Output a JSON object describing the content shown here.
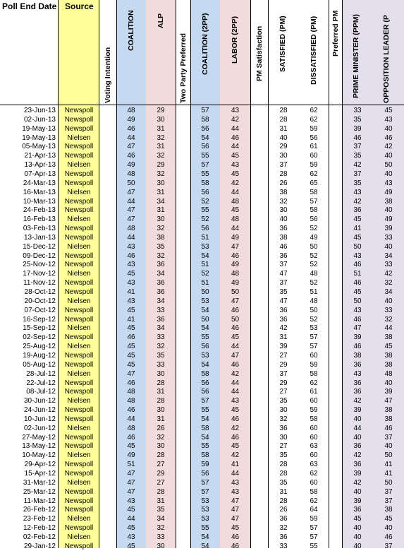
{
  "colors": {
    "source": "#ffff99",
    "coalition": "#c5d9f1",
    "alp": "#f2dcdb",
    "pm": "#e4dfec"
  },
  "headers": {
    "poll_end_date": "Poll End Date",
    "source": "Source",
    "voting_intention": "Voting Intention",
    "coalition": "COALITION",
    "alp": "ALP",
    "two_party_preferred": "Two Party Preferred",
    "coalition_2pp": "COALITION (2PP)",
    "labor_2pp": "LABOR (2PP)",
    "pm_satisfaction": "PM Satisfaction",
    "satisfied_pm": "SATISFIED (PM)",
    "dissatisfied_pm": "DISSATISFIED (PM)",
    "preferred_pm": "Preferred PM",
    "prime_minister_ppm": "PRIME MINISTER (PPM)",
    "opposition_leader_ppm": "OPPOSITION LEADER (P"
  },
  "rows": [
    [
      "23-Jun-13",
      "Newspoll",
      "48",
      "29",
      "57",
      "43",
      "28",
      "62",
      "33",
      "45"
    ],
    [
      "02-Jun-13",
      "Newspoll",
      "49",
      "30",
      "58",
      "42",
      "28",
      "62",
      "35",
      "43"
    ],
    [
      "19-May-13",
      "Newspoll",
      "46",
      "31",
      "56",
      "44",
      "31",
      "59",
      "39",
      "40"
    ],
    [
      "19-May-13",
      "Nielsen",
      "44",
      "32",
      "54",
      "46",
      "40",
      "56",
      "46",
      "46"
    ],
    [
      "05-May-13",
      "Newspoll",
      "47",
      "31",
      "56",
      "44",
      "29",
      "61",
      "37",
      "42"
    ],
    [
      "21-Apr-13",
      "Newspoll",
      "46",
      "32",
      "55",
      "45",
      "30",
      "60",
      "35",
      "40"
    ],
    [
      "13-Apr-13",
      "Nielsen",
      "49",
      "29",
      "57",
      "43",
      "37",
      "59",
      "42",
      "50"
    ],
    [
      "07-Apr-13",
      "Newspoll",
      "48",
      "32",
      "55",
      "45",
      "28",
      "62",
      "37",
      "40"
    ],
    [
      "24-Mar-13",
      "Newspoll",
      "50",
      "30",
      "58",
      "42",
      "26",
      "65",
      "35",
      "43"
    ],
    [
      "16-Mar-13",
      "Nielsen",
      "47",
      "31",
      "56",
      "44",
      "38",
      "58",
      "43",
      "49"
    ],
    [
      "10-Mar-13",
      "Newspoll",
      "44",
      "34",
      "52",
      "48",
      "32",
      "57",
      "42",
      "38"
    ],
    [
      "24-Feb-13",
      "Newspoll",
      "47",
      "31",
      "55",
      "45",
      "30",
      "58",
      "36",
      "40"
    ],
    [
      "16-Feb-13",
      "Nielsen",
      "47",
      "30",
      "52",
      "48",
      "40",
      "56",
      "45",
      "49"
    ],
    [
      "03-Feb-13",
      "Newspoll",
      "48",
      "32",
      "56",
      "44",
      "36",
      "52",
      "41",
      "39"
    ],
    [
      "13-Jan-13",
      "Newspoll",
      "44",
      "38",
      "51",
      "49",
      "38",
      "49",
      "45",
      "33"
    ],
    [
      "15-Dec-12",
      "Nielsen",
      "43",
      "35",
      "53",
      "47",
      "46",
      "50",
      "50",
      "40"
    ],
    [
      "09-Dec-12",
      "Newspoll",
      "46",
      "32",
      "54",
      "46",
      "36",
      "52",
      "43",
      "34"
    ],
    [
      "25-Nov-12",
      "Newspoll",
      "43",
      "36",
      "51",
      "49",
      "37",
      "52",
      "46",
      "33"
    ],
    [
      "17-Nov-12",
      "Nielsen",
      "45",
      "34",
      "52",
      "48",
      "47",
      "48",
      "51",
      "42"
    ],
    [
      "11-Nov-12",
      "Newspoll",
      "43",
      "36",
      "51",
      "49",
      "37",
      "52",
      "46",
      "32"
    ],
    [
      "28-Oct-12",
      "Newspoll",
      "41",
      "36",
      "50",
      "50",
      "35",
      "51",
      "45",
      "34"
    ],
    [
      "20-Oct-12",
      "Nielsen",
      "43",
      "34",
      "53",
      "47",
      "47",
      "48",
      "50",
      "40"
    ],
    [
      "07-Oct-12",
      "Newspoll",
      "45",
      "33",
      "54",
      "46",
      "36",
      "50",
      "43",
      "33"
    ],
    [
      "16-Sep-12",
      "Newspoll",
      "41",
      "36",
      "50",
      "50",
      "36",
      "52",
      "46",
      "32"
    ],
    [
      "15-Sep-12",
      "Nielsen",
      "45",
      "34",
      "54",
      "46",
      "42",
      "53",
      "47",
      "44"
    ],
    [
      "02-Sep-12",
      "Newspoll",
      "46",
      "33",
      "55",
      "45",
      "31",
      "57",
      "39",
      "38"
    ],
    [
      "25-Aug-12",
      "Nielsen",
      "45",
      "32",
      "56",
      "44",
      "39",
      "57",
      "46",
      "45"
    ],
    [
      "19-Aug-12",
      "Newspoll",
      "45",
      "35",
      "53",
      "47",
      "27",
      "60",
      "38",
      "38"
    ],
    [
      "05-Aug-12",
      "Newspoll",
      "45",
      "33",
      "54",
      "46",
      "29",
      "59",
      "36",
      "38"
    ],
    [
      "28-Jul-12",
      "Nielsen",
      "47",
      "30",
      "58",
      "42",
      "37",
      "58",
      "43",
      "48"
    ],
    [
      "22-Jul-12",
      "Newspoll",
      "46",
      "28",
      "56",
      "44",
      "29",
      "62",
      "36",
      "40"
    ],
    [
      "08-Jul-12",
      "Newspoll",
      "48",
      "31",
      "56",
      "44",
      "27",
      "61",
      "36",
      "39"
    ],
    [
      "30-Jun-12",
      "Nielsen",
      "48",
      "28",
      "57",
      "43",
      "35",
      "60",
      "42",
      "47"
    ],
    [
      "24-Jun-12",
      "Newspoll",
      "46",
      "30",
      "55",
      "45",
      "30",
      "59",
      "39",
      "38"
    ],
    [
      "10-Jun-12",
      "Newspoll",
      "44",
      "31",
      "54",
      "46",
      "32",
      "58",
      "40",
      "38"
    ],
    [
      "02-Jun-12",
      "Nielsen",
      "48",
      "26",
      "58",
      "42",
      "36",
      "60",
      "44",
      "46"
    ],
    [
      "27-May-12",
      "Newspoll",
      "46",
      "32",
      "54",
      "46",
      "30",
      "60",
      "40",
      "37"
    ],
    [
      "13-May-12",
      "Newspoll",
      "45",
      "30",
      "55",
      "45",
      "27",
      "63",
      "36",
      "40"
    ],
    [
      "10-May-12",
      "Nielsen",
      "49",
      "28",
      "58",
      "42",
      "35",
      "60",
      "42",
      "50"
    ],
    [
      "29-Apr-12",
      "Newspoll",
      "51",
      "27",
      "59",
      "41",
      "28",
      "63",
      "36",
      "41"
    ],
    [
      "15-Apr-12",
      "Newspoll",
      "47",
      "29",
      "56",
      "44",
      "28",
      "62",
      "39",
      "41"
    ],
    [
      "31-Mar-12",
      "Nielsen",
      "47",
      "27",
      "57",
      "43",
      "35",
      "60",
      "42",
      "50"
    ],
    [
      "25-Mar-12",
      "Newspoll",
      "47",
      "28",
      "57",
      "43",
      "31",
      "58",
      "40",
      "37"
    ],
    [
      "11-Mar-12",
      "Newspoll",
      "43",
      "31",
      "53",
      "47",
      "28",
      "62",
      "39",
      "37"
    ],
    [
      "26-Feb-12",
      "Newspoll",
      "45",
      "35",
      "53",
      "47",
      "26",
      "64",
      "36",
      "38"
    ],
    [
      "23-Feb-12",
      "Nielsen",
      "44",
      "34",
      "53",
      "47",
      "36",
      "59",
      "45",
      "45"
    ],
    [
      "12-Feb-12",
      "Newspoll",
      "45",
      "32",
      "55",
      "45",
      "32",
      "57",
      "40",
      "40"
    ],
    [
      "02-Feb-12",
      "Nielsen",
      "43",
      "33",
      "54",
      "46",
      "36",
      "57",
      "40",
      "46"
    ],
    [
      "29-Jan-12",
      "Newspoll",
      "45",
      "30",
      "54",
      "46",
      "33",
      "55",
      "40",
      "37"
    ]
  ]
}
